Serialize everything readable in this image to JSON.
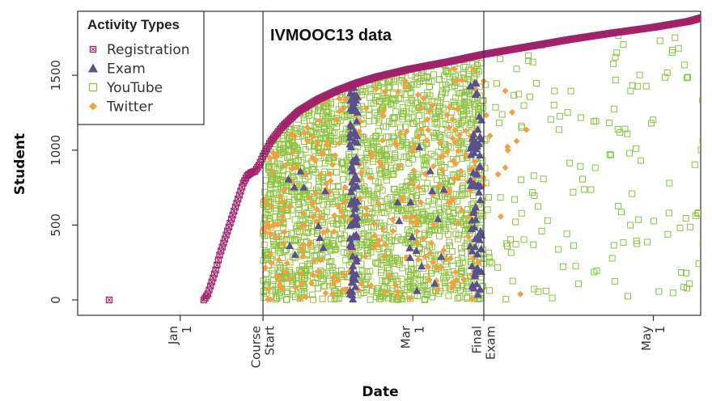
{
  "chart_data": {
    "type": "scatter",
    "title": "IVMOOC13 data",
    "xlabel": "Date",
    "ylabel": "Student",
    "ylim": [
      0,
      1900
    ],
    "yticks": [
      0,
      500,
      1000,
      1500
    ],
    "xlim": [
      "2012-12-06",
      "2013-05-13"
    ],
    "xticks": [
      {
        "date": "2013-01-01",
        "label": "Jan 1"
      },
      {
        "date": "2013-01-22",
        "label": "Course Start"
      },
      {
        "date": "2013-03-01",
        "label": "Mar 1"
      },
      {
        "date": "2013-03-19",
        "label": "Final Exam"
      },
      {
        "date": "2013-05-01",
        "label": "May 1"
      }
    ],
    "reference_lines": [
      "2013-01-22",
      "2013-03-19"
    ],
    "grid": false,
    "legend": {
      "title": "Activity Types",
      "position": "top-left",
      "entries": [
        "Registration",
        "Exam",
        "YouTube",
        "Twitter"
      ]
    },
    "series": [
      {
        "name": "Registration",
        "marker": "square-x",
        "color": "#A3216A",
        "points": [
          [
            "2012-12-14",
            0
          ],
          [
            "2013-01-07",
            0
          ],
          [
            "2013-01-08",
            40
          ],
          [
            "2013-01-09",
            120
          ],
          [
            "2013-01-10",
            200
          ],
          [
            "2013-01-11",
            300
          ],
          [
            "2013-01-12",
            380
          ],
          [
            "2013-01-13",
            460
          ],
          [
            "2013-01-14",
            540
          ],
          [
            "2013-01-15",
            620
          ],
          [
            "2013-01-16",
            700
          ],
          [
            "2013-01-17",
            780
          ],
          [
            "2013-01-18",
            830
          ],
          [
            "2013-01-19",
            850
          ],
          [
            "2013-01-20",
            860
          ],
          [
            "2013-01-21",
            900
          ],
          [
            "2013-01-22",
            960
          ],
          [
            "2013-01-24",
            1060
          ],
          [
            "2013-01-27",
            1160
          ],
          [
            "2013-01-31",
            1260
          ],
          [
            "2013-02-05",
            1340
          ],
          [
            "2013-02-10",
            1400
          ],
          [
            "2013-02-15",
            1450
          ],
          [
            "2013-02-20",
            1490
          ],
          [
            "2013-02-28",
            1540
          ],
          [
            "2013-03-10",
            1590
          ],
          [
            "2013-03-19",
            1640
          ],
          [
            "2013-03-30",
            1690
          ],
          [
            "2013-04-10",
            1740
          ],
          [
            "2013-04-20",
            1780
          ],
          [
            "2013-05-01",
            1820
          ],
          [
            "2013-05-10",
            1860
          ],
          [
            "2013-05-14",
            1890
          ]
        ]
      },
      {
        "name": "Exam",
        "marker": "triangle",
        "color": "#5B4F8F",
        "clusters": [
          {
            "date": "2013-02-14",
            "spread_days": 1,
            "ymin": 0,
            "ymax": 1420,
            "count": 90
          },
          {
            "date": "2013-03-17",
            "spread_days": 1.5,
            "ymin": 30,
            "ymax": 1450,
            "count": 70
          },
          {
            "date": "2013-02-02",
            "spread_days": 6,
            "ymin": 300,
            "ymax": 900,
            "count": 10
          },
          {
            "date": "2013-03-03",
            "spread_days": 6,
            "ymin": 0,
            "ymax": 1100,
            "count": 16
          }
        ]
      },
      {
        "name": "YouTube",
        "marker": "square-open",
        "color": "#8CC43F",
        "clusters": [
          {
            "date_from": "2013-01-22",
            "date_to": "2013-03-19",
            "ymin": 0,
            "ymax": 1640,
            "count": 1900
          },
          {
            "date_from": "2013-03-19",
            "date_to": "2013-05-14",
            "ymin": 0,
            "ymax": 1880,
            "count": 150
          }
        ]
      },
      {
        "name": "Twitter",
        "marker": "diamond",
        "color": "#F5A040",
        "clusters": [
          {
            "date_from": "2013-01-22",
            "date_to": "2013-03-19",
            "ymin": 0,
            "ymax": 1560,
            "count": 300
          },
          {
            "date_from": "2013-03-19",
            "date_to": "2013-03-31",
            "ymin": 0,
            "ymax": 1500,
            "count": 12
          }
        ]
      }
    ]
  }
}
